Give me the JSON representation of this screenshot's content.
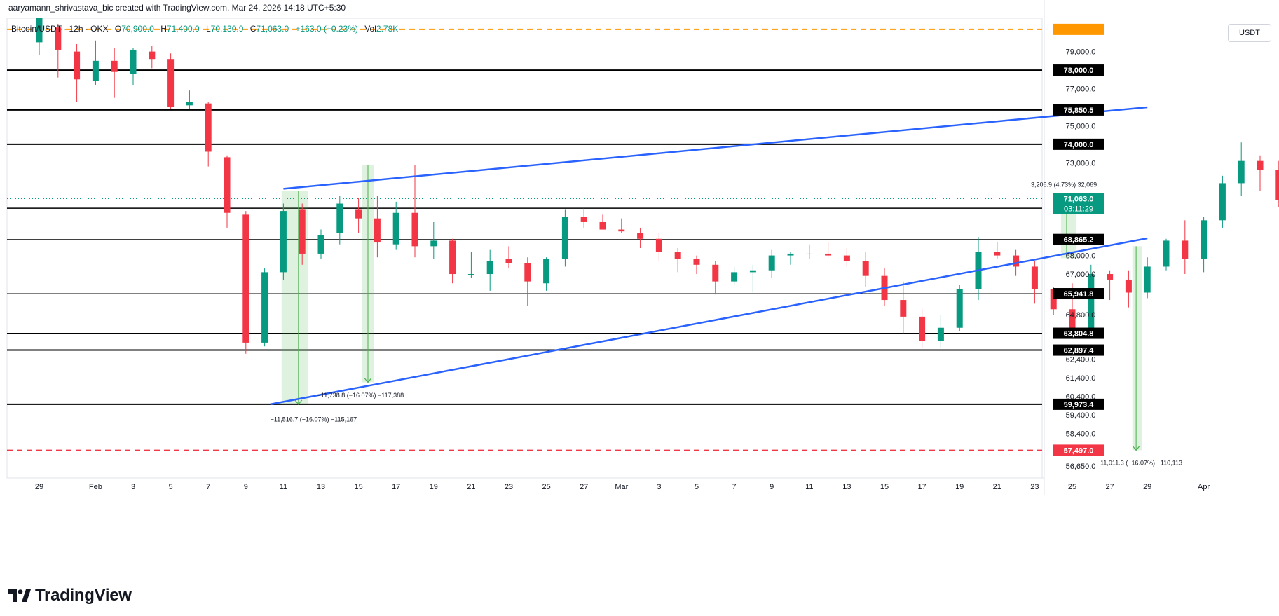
{
  "header": {
    "text": "aaryamann_shrivastava_bic created with TradingView.com, Mar 24, 2026 14:18 UTC+5:30"
  },
  "legend": {
    "symbol": "Bitcoin/USDT · 12h · OKX",
    "o_label": "O",
    "o_value": "70,900.0",
    "h_label": "H",
    "h_value": "71,400.0",
    "l_label": "L",
    "l_value": "70,130.9",
    "c_label": "C",
    "c_value": "71,063.0",
    "change": "+163.0 (+0.23%)",
    "vol_label": "Vol",
    "vol_value": "2.78K"
  },
  "currency_label": "USDT",
  "brand": {
    "name": "TradingView"
  },
  "colors": {
    "up": "#089981",
    "down": "#f23645",
    "trend": "#2962ff",
    "level": "#000000",
    "target": "#f23645",
    "orange": "#ff9800",
    "measure": "#4caf50",
    "current": "#089981"
  },
  "chart_data": {
    "type": "candlestick",
    "ylim": [
      56000,
      80800
    ],
    "y_ticks": [
      {
        "v": 79000,
        "label": "79,000.0"
      },
      {
        "v": 77000,
        "label": "77,000.0"
      },
      {
        "v": 75000,
        "label": "75,000.0"
      },
      {
        "v": 73000,
        "label": "73,000.0"
      },
      {
        "v": 68000,
        "label": "68,000.0"
      },
      {
        "v": 67000,
        "label": "67,000.0"
      },
      {
        "v": 64800,
        "label": "64,800.0"
      },
      {
        "v": 62400,
        "label": "62,400.0"
      },
      {
        "v": 61400,
        "label": "61,400.0"
      },
      {
        "v": 60400,
        "label": "60,400.0"
      },
      {
        "v": 59400,
        "label": "59,400.0"
      },
      {
        "v": 58400,
        "label": "58,400.0"
      },
      {
        "v": 56650,
        "label": "56,650.0"
      }
    ],
    "x_ticks": [
      {
        "t": 0,
        "label": "29"
      },
      {
        "t": 3,
        "label": "Feb"
      },
      {
        "t": 5,
        "label": "3"
      },
      {
        "t": 7,
        "label": "5"
      },
      {
        "t": 9,
        "label": "7"
      },
      {
        "t": 11,
        "label": "9"
      },
      {
        "t": 13,
        "label": "11"
      },
      {
        "t": 15,
        "label": "13"
      },
      {
        "t": 17,
        "label": "15"
      },
      {
        "t": 19,
        "label": "17"
      },
      {
        "t": 21,
        "label": "19"
      },
      {
        "t": 23,
        "label": "21"
      },
      {
        "t": 25,
        "label": "23"
      },
      {
        "t": 27,
        "label": "25"
      },
      {
        "t": 29,
        "label": "27"
      },
      {
        "t": 31,
        "label": "Mar"
      },
      {
        "t": 33,
        "label": "3"
      },
      {
        "t": 35,
        "label": "5"
      },
      {
        "t": 37,
        "label": "7"
      },
      {
        "t": 39,
        "label": "9"
      },
      {
        "t": 41,
        "label": "11"
      },
      {
        "t": 43,
        "label": "13"
      },
      {
        "t": 45,
        "label": "15"
      },
      {
        "t": 47,
        "label": "17"
      },
      {
        "t": 49,
        "label": "19"
      },
      {
        "t": 51,
        "label": "21"
      },
      {
        "t": 53,
        "label": "23"
      },
      {
        "t": 55,
        "label": "25"
      },
      {
        "t": 57,
        "label": "27"
      },
      {
        "t": 59,
        "label": "29"
      },
      {
        "t": 62,
        "label": "Apr"
      }
    ],
    "candles": [
      [
        79500,
        80800,
        78800,
        80800
      ],
      [
        80300,
        80500,
        77600,
        79100
      ],
      [
        79000,
        79400,
        76300,
        77500
      ],
      [
        77400,
        79600,
        77200,
        78500
      ],
      [
        78500,
        79200,
        76500,
        77900
      ],
      [
        77800,
        79200,
        77200,
        79100
      ],
      [
        79000,
        79300,
        78100,
        78600
      ],
      [
        78600,
        78900,
        75900,
        76000
      ],
      [
        76100,
        76900,
        75900,
        76300
      ],
      [
        76200,
        76300,
        72800,
        73600
      ],
      [
        73300,
        73400,
        69500,
        70300
      ],
      [
        70200,
        70400,
        62700,
        63300
      ],
      [
        63300,
        67300,
        63100,
        67100
      ],
      [
        67100,
        70800,
        66700,
        70400
      ],
      [
        70500,
        70800,
        67500,
        68100
      ],
      [
        68100,
        69400,
        67800,
        69100
      ],
      [
        69200,
        71200,
        68600,
        70800
      ],
      [
        70500,
        71100,
        69200,
        70000
      ],
      [
        70000,
        71200,
        67900,
        68700
      ],
      [
        68600,
        70900,
        68300,
        70300
      ],
      [
        70300,
        72900,
        67900,
        68500
      ],
      [
        68500,
        69800,
        67800,
        68800
      ],
      [
        68800,
        68900,
        66500,
        67000
      ],
      [
        67000,
        68200,
        66800,
        67000
      ],
      [
        67000,
        68300,
        66100,
        67700
      ],
      [
        67800,
        68500,
        67300,
        67600
      ],
      [
        67600,
        67900,
        65300,
        66600
      ],
      [
        66500,
        67900,
        66100,
        67800
      ],
      [
        67800,
        70500,
        67400,
        70100
      ],
      [
        70100,
        70600,
        69500,
        69800
      ],
      [
        69800,
        70200,
        69400,
        69400
      ],
      [
        69400,
        70000,
        69200,
        69300
      ],
      [
        69200,
        69500,
        68400,
        68900
      ],
      [
        68900,
        69200,
        67700,
        68200
      ],
      [
        68200,
        68400,
        67100,
        67800
      ],
      [
        67800,
        68000,
        67000,
        67500
      ],
      [
        67500,
        67700,
        65900,
        66600
      ],
      [
        66600,
        67400,
        66400,
        67100
      ],
      [
        67100,
        67500,
        66000,
        67200
      ],
      [
        67200,
        68300,
        66800,
        68000
      ],
      [
        68000,
        68200,
        67500,
        68100
      ],
      [
        68100,
        68600,
        67800,
        68100
      ],
      [
        68100,
        68700,
        67900,
        68000
      ],
      [
        68000,
        68400,
        67400,
        67700
      ],
      [
        67700,
        68200,
        66300,
        66900
      ],
      [
        66900,
        67300,
        65300,
        65600
      ],
      [
        65600,
        66600,
        63800,
        64700
      ],
      [
        64700,
        65100,
        63000,
        63400
      ],
      [
        63400,
        64800,
        63000,
        64100
      ],
      [
        64100,
        66400,
        63900,
        66200
      ],
      [
        66200,
        69000,
        65600,
        68200
      ],
      [
        68200,
        68700,
        67800,
        68000
      ],
      [
        68000,
        68300,
        66900,
        67400
      ],
      [
        67400,
        67700,
        65400,
        66200
      ],
      [
        66200,
        66300,
        64800,
        65100
      ],
      [
        65100,
        66500,
        63500,
        63900
      ],
      [
        63900,
        67500,
        63700,
        67000
      ],
      [
        67000,
        67200,
        65600,
        66700
      ],
      [
        66700,
        67200,
        65200,
        66000
      ],
      [
        66000,
        67900,
        65700,
        67400
      ],
      [
        67400,
        68900,
        67200,
        68800
      ],
      [
        68800,
        69900,
        67000,
        67800
      ],
      [
        67800,
        70100,
        67100,
        69900
      ],
      [
        69900,
        72300,
        69500,
        71900
      ],
      [
        71900,
        74100,
        71200,
        73100
      ],
      [
        73100,
        73400,
        71500,
        72600
      ],
      [
        72600,
        73100,
        70600,
        71000
      ],
      [
        71000,
        71600,
        69700,
        70400
      ],
      [
        70400,
        70500,
        68200,
        68400
      ],
      [
        68400,
        68700,
        67500,
        68000
      ],
      [
        68000,
        68500,
        67700,
        68200
      ],
      [
        68200,
        68400,
        67100,
        67600
      ],
      [
        67600,
        68600,
        67000,
        67700
      ],
      [
        67700,
        68100,
        66500,
        66400
      ],
      [
        66300,
        66300,
        65900,
        66100
      ],
      [
        66100,
        68700,
        66200,
        68300
      ],
      [
        68300,
        69800,
        67900,
        69500
      ],
      [
        69500,
        70900,
        68100,
        70700
      ],
      [
        70700,
        72100,
        70200,
        70300
      ],
      [
        70300,
        70400,
        68800,
        69000
      ],
      [
        69000,
        70300,
        68600,
        69800
      ],
      [
        69800,
        69900,
        68800,
        69100
      ],
      [
        69100,
        70700,
        68900,
        70300
      ],
      [
        70300,
        70900,
        69800,
        70500
      ],
      [
        70500,
        71300,
        69800,
        70700
      ],
      [
        70700,
        72800,
        70400,
        72400
      ],
      [
        72400,
        73900,
        70800,
        71700
      ],
      [
        71700,
        71900,
        70600,
        71000
      ],
      [
        71000,
        71400,
        70400,
        70800
      ],
      [
        70800,
        71700,
        70500,
        71300
      ],
      [
        71300,
        72600,
        71100,
        72000
      ],
      [
        72000,
        73400,
        71700,
        72600
      ],
      [
        72600,
        73300,
        71400,
        73200
      ],
      [
        73200,
        74800,
        72600,
        74000
      ],
      [
        74000,
        75100,
        73300,
        75000
      ],
      [
        75000,
        76100,
        73700,
        73900
      ],
      [
        73900,
        74500,
        73400,
        74200
      ],
      [
        74200,
        74600,
        73200,
        73700
      ],
      [
        73700,
        73900,
        72500,
        72900
      ],
      [
        72900,
        73000,
        70600,
        71300
      ],
      [
        71300,
        71600,
        69700,
        70100
      ],
      [
        70100,
        70800,
        68900,
        69800
      ],
      [
        69800,
        70700,
        69200,
        69600
      ],
      [
        69600,
        70300,
        69500,
        70300
      ],
      [
        70300,
        70800,
        69100,
        69600
      ],
      [
        69600,
        71000,
        69300,
        69900
      ],
      [
        69900,
        70500,
        69000,
        70600
      ],
      [
        70600,
        71100,
        68900,
        69200
      ],
      [
        69200,
        69400,
        67400,
        68600
      ],
      [
        68600,
        69300,
        68100,
        69000
      ],
      [
        68400,
        71500,
        67800,
        70600
      ],
      [
        70600,
        71200,
        69400,
        71200
      ],
      [
        70900,
        71400,
        70100,
        71063
      ]
    ],
    "horizontal_levels": [
      {
        "v": 78000,
        "label": "78,000.0",
        "style": "solid",
        "width": 2
      },
      {
        "v": 75850.5,
        "label": "75,850.5",
        "style": "solid",
        "width": 2
      },
      {
        "v": 74000,
        "label": "74,000.0",
        "style": "solid",
        "width": 2
      },
      {
        "v": 70552.5,
        "label": "70,552.5",
        "style": "solid",
        "width": 1.5
      },
      {
        "v": 68865.2,
        "label": "68,865.2",
        "style": "solid",
        "width": 1
      },
      {
        "v": 65941.8,
        "label": "65,941.8",
        "style": "solid",
        "width": 1
      },
      {
        "v": 63804.8,
        "label": "63,804.8",
        "style": "solid",
        "width": 1
      },
      {
        "v": 62897.4,
        "label": "62,897.4",
        "style": "solid",
        "width": 2
      },
      {
        "v": 59973.4,
        "label": "59,973.4",
        "style": "solid",
        "width": 2
      }
    ],
    "target_level": {
      "v": 57497,
      "label": "57,497.0"
    },
    "orange_level": {
      "v": 80200
    },
    "current_price": {
      "v": 71063,
      "label": "71,063.0",
      "countdown": "03:11:29"
    },
    "trendlines": [
      {
        "t0": 13,
        "v0": 71600,
        "t1": 59,
        "v1": 76000
      },
      {
        "t0": 12.3,
        "v0": 59973,
        "t1": 59,
        "v1": 68930
      }
    ],
    "measures": [
      {
        "t": 13.8,
        "from": 71490,
        "to": 59973,
        "bg_from": 12.9,
        "bg_to": 14.3,
        "text": "−11,516.7 (−16.07%) −115,167",
        "text_t": 12.3,
        "text_v": 59050
      },
      {
        "t": 17.5,
        "from": 72900,
        "to": 61160,
        "bg_from": 17.2,
        "bg_to": 17.8,
        "text": "−11,738.8 (−16.07%) −117,388",
        "text_t": 14.8,
        "text_v": 60350
      },
      {
        "t": 58.4,
        "from": 68500,
        "to": 57497,
        "bg_from": 58.2,
        "bg_to": 58.7,
        "text": "−11,011.3 (−16.07%) −110,113",
        "text_t": 56.3,
        "text_v": 56700
      },
      {
        "t": 54.7,
        "from": 67860,
        "to": 71063,
        "bg_from": 54.4,
        "bg_to": 55.2,
        "text": "3,206.9 (4.73%) 32,069",
        "text_t": 52.8,
        "text_v": 71700
      }
    ]
  }
}
